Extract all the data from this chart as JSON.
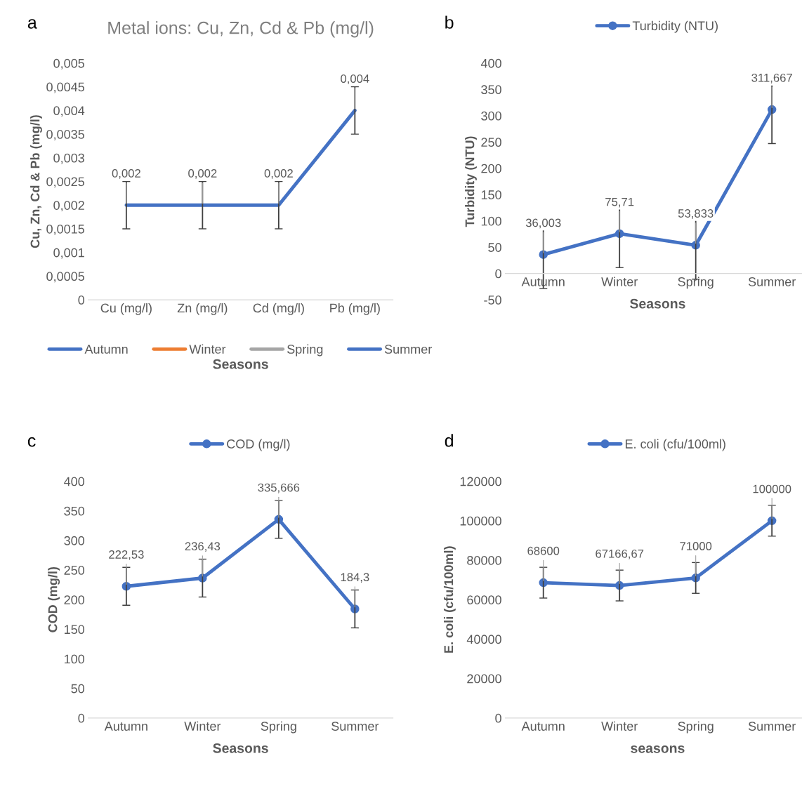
{
  "chart_data": [
    {
      "type": "line",
      "title": "Metal ions: Cu, Zn, Cd & Pb (mg/l)",
      "xlabel": "Seasons",
      "ylabel": "Cu, Zn, Cd & Pb (mg/l)",
      "annotations": [
        "a"
      ],
      "categories": [
        "Cu (mg/l)",
        "Zn (mg/l)",
        "Cd (mg/l)",
        "Pb (mg/l)"
      ],
      "series": [
        {
          "name": "Autumn",
          "color": "#4472c4",
          "values": [
            null,
            null,
            null,
            null
          ]
        },
        {
          "name": "Winter",
          "color": "#ed7d31",
          "values": [
            null,
            null,
            null,
            null
          ]
        },
        {
          "name": "Spring",
          "color": "#a5a5a5",
          "values": [
            null,
            null,
            null,
            null
          ]
        },
        {
          "name": "Summer",
          "color": "#4472c4",
          "values": [
            0.002,
            0.002,
            0.002,
            0.004
          ],
          "errors": [
            0.0005,
            0.0005,
            0.0005,
            0.0005
          ],
          "value_labels": [
            "0,002",
            "0,002",
            "0,002",
            "0,004"
          ]
        }
      ],
      "ylim": [
        0,
        0.005
      ],
      "yticks": [
        0,
        {
          "value": 0.0005,
          "label": "0,0005"
        },
        {
          "value": 0.001,
          "label": "0,001"
        },
        {
          "value": 0.0015,
          "label": "0,0015"
        },
        {
          "value": 0.002,
          "label": "0,002"
        },
        {
          "value": 0.0025,
          "label": "0,0025"
        },
        {
          "value": 0.003,
          "label": "0,003"
        },
        {
          "value": 0.0035,
          "label": "0,0035"
        },
        {
          "value": 0.004,
          "label": "0,004"
        },
        {
          "value": 0.0045,
          "label": "0,0045"
        },
        {
          "value": 0.005,
          "label": "0,005"
        }
      ],
      "legend": "bottom",
      "marker": "none"
    },
    {
      "type": "line",
      "xlabel": "Seasons",
      "ylabel": "Turbidity (NTU)",
      "annotations": [
        "b"
      ],
      "categories": [
        "Autumn",
        "Winter",
        "Spring",
        "Summer"
      ],
      "series": [
        {
          "name": "Turbidity (NTU)",
          "color": "#4472c4",
          "values": [
            36.003,
            75.71,
            53.833,
            311.667
          ],
          "errors": [
            64.5,
            64.5,
            64.5,
            64.5
          ],
          "value_labels": [
            "36,003",
            "75,71",
            "53,833",
            "311,667"
          ]
        }
      ],
      "ylim": [
        -50,
        400
      ],
      "yticks": [
        -50,
        0,
        50,
        100,
        150,
        200,
        250,
        300,
        350,
        400
      ],
      "legend": "top",
      "marker": "circle"
    },
    {
      "type": "line",
      "xlabel": "Seasons",
      "ylabel": "COD (mg/l)",
      "annotations": [
        "c"
      ],
      "categories": [
        "Autumn",
        "Winter",
        "Spring",
        "Summer"
      ],
      "series": [
        {
          "name": "COD (mg/l)",
          "color": "#4472c4",
          "values": [
            222.53,
            236.43,
            335.666,
            184.3
          ],
          "errors": [
            32,
            32,
            32,
            32
          ],
          "value_labels": [
            "222,53",
            "236,43",
            "335,666",
            "184,3"
          ]
        }
      ],
      "ylim": [
        0,
        400
      ],
      "yticks": [
        0,
        50,
        100,
        150,
        200,
        250,
        300,
        350,
        400
      ],
      "legend": "top",
      "marker": "circle"
    },
    {
      "type": "line",
      "xlabel": "seasons",
      "ylabel": "E. coli (cfu/100ml)",
      "annotations": [
        "d"
      ],
      "categories": [
        "Autumn",
        "Winter",
        "Spring",
        "Summer"
      ],
      "series": [
        {
          "name": "E. coli (cfu/100ml)",
          "color": "#4472c4",
          "values": [
            68600,
            67166.67,
            71000,
            100000
          ],
          "errors": [
            7800,
            7800,
            7800,
            7800
          ],
          "value_labels": [
            "68600",
            "67166,67",
            "71000",
            "100000"
          ]
        }
      ],
      "ylim": [
        0,
        120000
      ],
      "yticks": [
        0,
        20000,
        40000,
        60000,
        80000,
        100000,
        120000
      ],
      "legend": "top",
      "marker": "circle"
    }
  ]
}
